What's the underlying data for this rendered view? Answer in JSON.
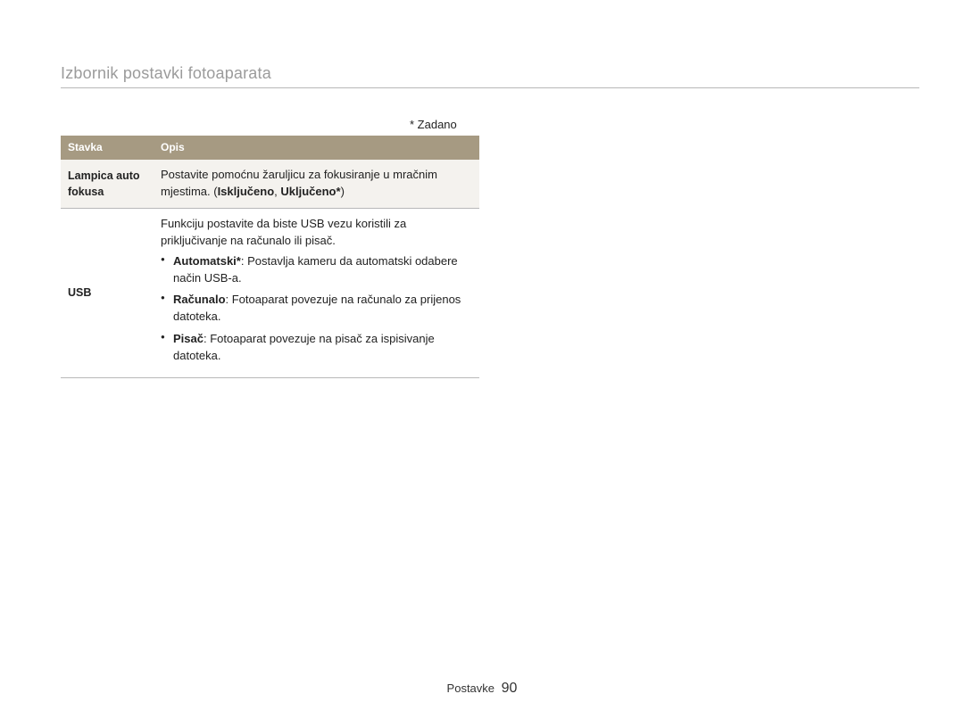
{
  "page": {
    "title": "Izbornik postavki fotoaparata",
    "default_note": "* Zadano",
    "footer_label": "Postavke",
    "page_number": "90"
  },
  "table": {
    "header": {
      "col1": "Stavka",
      "col2": "Opis"
    },
    "row1": {
      "label": "Lampica auto fokusa",
      "desc_pre": "Postavite pomoćnu žaruljicu za fokusiranje u mračnim mjestima. (",
      "opt_off": "Isključeno",
      "sep": ", ",
      "opt_on": "Uključeno*",
      "desc_post": ")"
    },
    "row2": {
      "label": "USB",
      "intro": "Funkciju postavite da biste USB vezu koristili za priključivanje na računalo ili pisač.",
      "items": {
        "auto_label": "Automatski*",
        "auto_text": ": Postavlja kameru da automatski odabere način USB-a.",
        "pc_label": "Računalo",
        "pc_text": ": Fotoaparat povezuje na računalo za prijenos datoteka.",
        "printer_label": "Pisač",
        "printer_text": ": Fotoaparat povezuje na pisač za ispisivanje datoteka."
      }
    }
  },
  "colors": {
    "header_bg": "#a69a82",
    "header_fg": "#ffffff",
    "shade_bg": "#f4f2ee",
    "rule": "#b8b8b8",
    "title_fg": "#9b9b9b"
  }
}
